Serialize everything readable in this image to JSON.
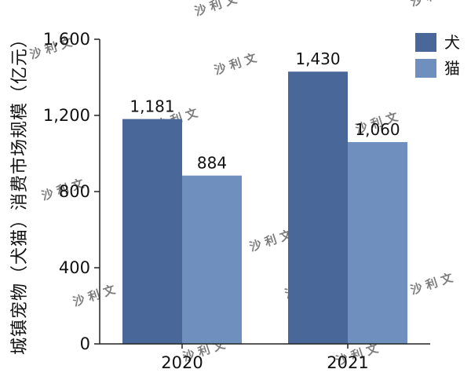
{
  "chart_data": {
    "type": "bar",
    "categories": [
      "2020",
      "2021"
    ],
    "series": [
      {
        "name": "犬",
        "values": [
          1181,
          1430
        ],
        "labels": [
          "1,181",
          "1,430"
        ],
        "color": "#4a6799"
      },
      {
        "name": "猫",
        "values": [
          884,
          1060
        ],
        "labels": [
          "884",
          "1,060"
        ],
        "color": "#6f8fbe"
      }
    ],
    "title": "",
    "xlabel": "",
    "ylabel": "城镇宠物（犬猫）消费市场规模（亿元）",
    "ylim": [
      0,
      1600
    ],
    "yticks": [
      0,
      400,
      800,
      1200,
      1600
    ],
    "ytick_labels": [
      "0",
      "400",
      "800",
      "1,200",
      "1,600"
    ],
    "grid": false,
    "legend_position": "top-right"
  },
  "watermark": "沙 利 文"
}
